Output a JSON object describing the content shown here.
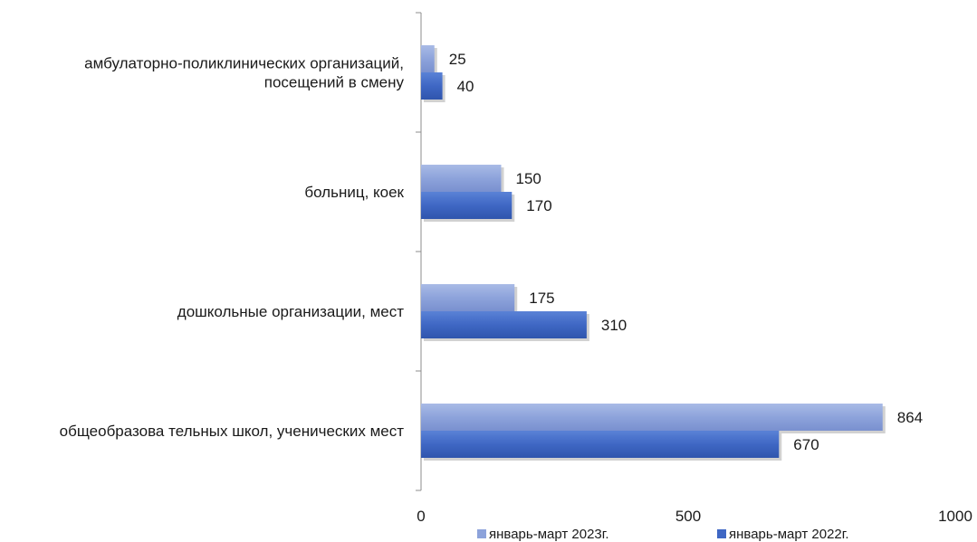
{
  "chart_data": {
    "type": "bar",
    "orientation": "horizontal",
    "categories": [
      [
        "амбулаторно-поликлинических организаций,",
        "посещений в смену"
      ],
      [
        "больниц, коек"
      ],
      [
        "дошкольные организации, мест"
      ],
      [
        "общеобразова тельных школ, ученических мест"
      ]
    ],
    "series": [
      {
        "name": "январь-март 2023г.",
        "values": [
          25,
          150,
          175,
          864
        ],
        "color": "#8DA3DB"
      },
      {
        "name": "январь-март 2022г.",
        "values": [
          40,
          170,
          310,
          670
        ],
        "color": "#3F67C4"
      }
    ],
    "xlim": [
      0,
      1000
    ],
    "xticks": [
      "0",
      "500",
      "1000"
    ],
    "grid": false,
    "legend_position": "bottom"
  }
}
